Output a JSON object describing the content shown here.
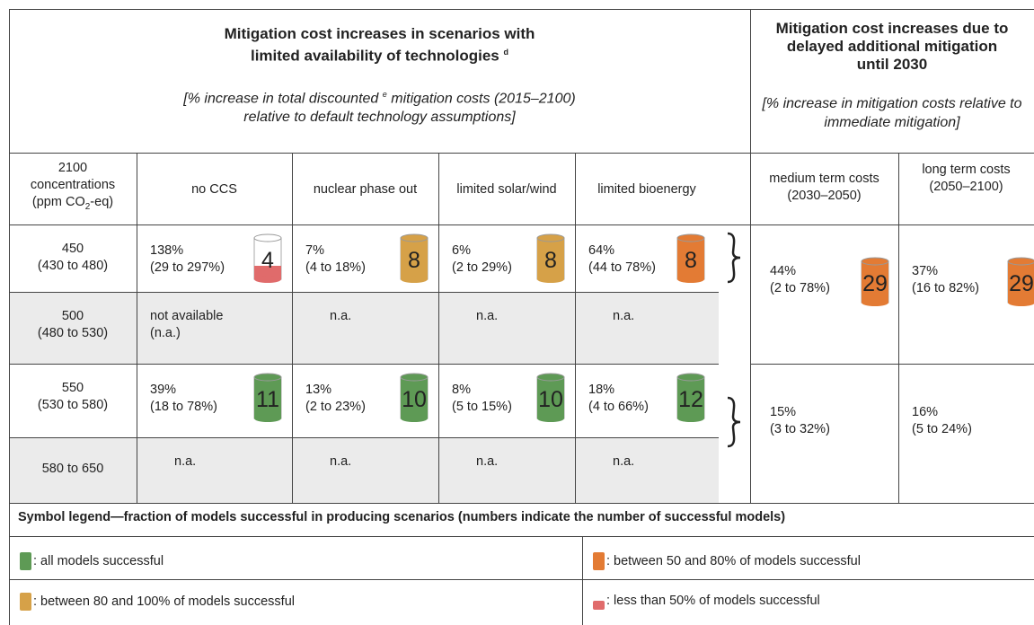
{
  "header_left": {
    "title": "Mitigation cost increases in scenarios with limited availability of technologies",
    "title_note": "d",
    "subtitle_pre": "[% increase in total discounted",
    "subtitle_note": "e",
    "subtitle_post": "mitigation costs (2015–2100) relative to default technology assumptions]"
  },
  "header_right": {
    "title": "Mitigation cost increases due to delayed additional mitigation until 2030",
    "subtitle": "[% increase in mitigation costs relative to immediate mitigation]"
  },
  "columns": {
    "concentration": {
      "pre": "2100 concentrations (ppm CO",
      "sub": "2",
      "post": "-eq)"
    },
    "technologies": [
      "no CCS",
      "nuclear phase out",
      "limited solar/wind",
      "limited bioenergy"
    ],
    "delayed": [
      "medium term costs (2030–2050)",
      "long term costs (2050–2100)"
    ]
  },
  "rows": [
    {
      "concentration": "450",
      "range": "(430 to 480)",
      "shaded": false,
      "cells": [
        {
          "value": "138%",
          "range": "(29 to 297%)",
          "models": 4,
          "symbol": 3
        },
        {
          "value": "7%",
          "range": "(4 to 18%)",
          "models": 8,
          "symbol": 1
        },
        {
          "value": "6%",
          "range": "(2 to 29%)",
          "models": 8,
          "symbol": 1
        },
        {
          "value": "64%",
          "range": "(44 to 78%)",
          "models": 8,
          "symbol": 2
        }
      ]
    },
    {
      "concentration": "500",
      "range": "(480 to 530)",
      "shaded": true,
      "cells": [
        {
          "value": "not available",
          "range": "(n.a.)"
        },
        {
          "value": "n.a."
        },
        {
          "value": "n.a."
        },
        {
          "value": "n.a."
        }
      ]
    },
    {
      "concentration": "550",
      "range": "(530 to 580)",
      "shaded": false,
      "cells": [
        {
          "value": "39%",
          "range": "(18 to 78%)",
          "models": 11,
          "symbol": 0
        },
        {
          "value": "13%",
          "range": "(2 to 23%)",
          "models": 10,
          "symbol": 0
        },
        {
          "value": "8%",
          "range": "(5 to 15%)",
          "models": 10,
          "symbol": 0
        },
        {
          "value": "18%",
          "range": "(4 to 66%)",
          "models": 12,
          "symbol": 0
        }
      ]
    },
    {
      "concentration": "580 to 650",
      "shaded": true,
      "cells": [
        {
          "value": "n.a."
        },
        {
          "value": "n.a."
        },
        {
          "value": "n.a."
        },
        {
          "value": "n.a."
        }
      ]
    }
  ],
  "delayed_groups": [
    {
      "cells": [
        {
          "value": "44%",
          "range": "(2 to 78%)",
          "models": 29,
          "symbol": 2
        },
        {
          "value": "37%",
          "range": "(16 to 82%)",
          "models": 29,
          "symbol": 2
        }
      ]
    },
    {
      "cells": [
        {
          "value": "15%",
          "range": "(3 to 32%)"
        },
        {
          "value": "16%",
          "range": "(5 to 24%)"
        }
      ]
    }
  ],
  "legend": {
    "title": "Symbol legend—fraction of models successful in producing scenarios (numbers indicate the number of successful models)",
    "items": [
      {
        "text": ": all models successful",
        "color": "#5e9a55",
        "partial": false
      },
      {
        "text": ": between 80 and 100% of models successful",
        "color": "#d6a148",
        "partial": false
      },
      {
        "text": ": between 50 and 80% of models successful",
        "color": "#e37b34",
        "partial": false
      },
      {
        "text": ": less than 50% of models successful",
        "color": "#e06b6b",
        "partial": true
      }
    ]
  }
}
